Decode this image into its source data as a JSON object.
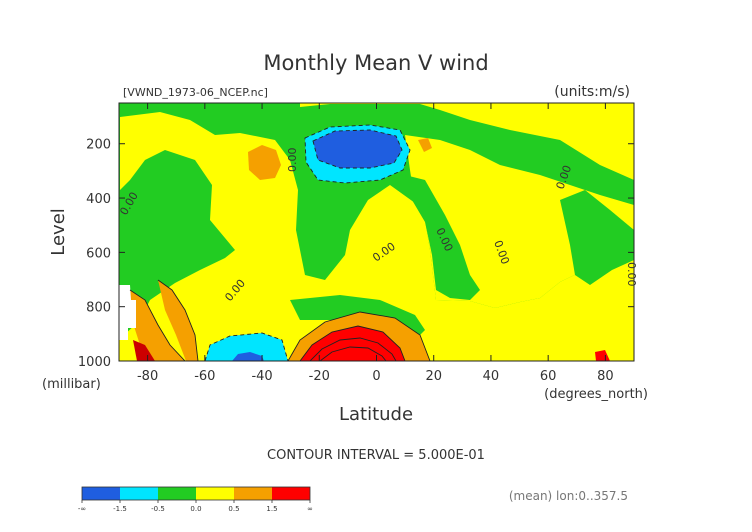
{
  "chart_data": {
    "type": "heatmap",
    "title": "Monthly Mean V wind",
    "file_label": "[VWND_1973-06_NCEP.nc]",
    "units_label": "(units:m/s)",
    "xlabel": "Latitude",
    "x_units": "(degrees_north)",
    "ylabel": "Level",
    "y_units": "(millibar)",
    "xlim": [
      -90,
      90
    ],
    "ylim": [
      1000,
      50
    ],
    "y_inverted": true,
    "x_ticks": [
      -80,
      -60,
      -40,
      -20,
      0,
      20,
      40,
      60,
      80
    ],
    "x_tick_labels": [
      "-80",
      "-60",
      "-40",
      "-20",
      "0",
      "20",
      "40",
      "60",
      "80"
    ],
    "y_ticks": [
      200,
      400,
      600,
      800,
      1000
    ],
    "y_tick_labels": [
      "200",
      "400",
      "600",
      "800",
      "1000"
    ],
    "contour_interval_text": "CONTOUR INTERVAL = 5.000E-01",
    "contour_labels": [
      "0.00",
      "0.00",
      "0.00",
      "0.00",
      "0.00",
      "0.00",
      "0.00"
    ],
    "footer_note": "(mean) lon:0..357.5",
    "grid": false,
    "legend": "colorbar-bottom-left",
    "colorbar": {
      "labels": [
        "-∞",
        "-1.5",
        "-0.5",
        "0.0",
        "0.5",
        "1.5",
        "∞"
      ],
      "colors": [
        "#1f5ee0",
        "#00e5ff",
        "#22cc22",
        "#ffff00",
        "#f5a000",
        "#ff0000"
      ],
      "bins": [
        "< -1.5",
        "-1.5 to -0.5",
        "-0.5 to 0.0",
        "0.0 to 0.5",
        "0.5 to 1.5",
        "> 1.5"
      ]
    },
    "features": [
      {
        "name": "upper-tropospheric southward maximum",
        "lat_range": [
          -20,
          10
        ],
        "level_range": [
          120,
          230
        ],
        "value_range": "< -1.5"
      },
      {
        "name": "low-level northward maximum",
        "lat_range": [
          -25,
          10
        ],
        "level_range": [
          850,
          1000
        ],
        "value_range": "> 1.5"
      },
      {
        "name": "southern low-level southward cell",
        "lat_range": [
          -60,
          -30
        ],
        "level_range": [
          920,
          1000
        ],
        "value_range": "-1.5 to -0.5"
      },
      {
        "name": "polar low-level northward cell",
        "lat_range": [
          -90,
          -75
        ],
        "level_range": [
          850,
          1000
        ],
        "value_range": "> 1.5"
      }
    ]
  }
}
